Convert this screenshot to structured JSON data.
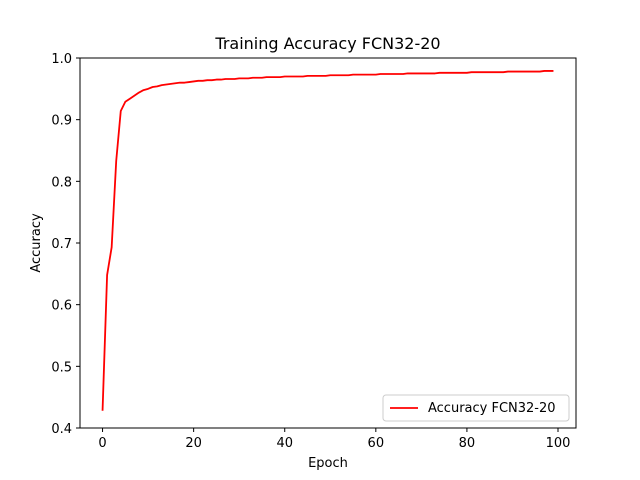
{
  "chart_data": {
    "type": "line",
    "title": "Training Accuracy FCN32-20",
    "xlabel": "Epoch",
    "ylabel": "Accuracy",
    "xlim": [
      -4.95,
      103.95
    ],
    "ylim": [
      0.4,
      1.0
    ],
    "xticks": [
      0,
      20,
      40,
      60,
      80,
      100
    ],
    "yticks": [
      0.4,
      0.5,
      0.6,
      0.7,
      0.8,
      0.9,
      1.0
    ],
    "grid": false,
    "legend_position": "bottom-right",
    "series": [
      {
        "name": "Accuracy FCN32-20",
        "color": "#ff0000",
        "x": [
          0,
          1,
          2,
          3,
          4,
          5,
          6,
          7,
          8,
          9,
          10,
          11,
          12,
          13,
          14,
          15,
          16,
          17,
          18,
          19,
          20,
          21,
          22,
          23,
          24,
          25,
          26,
          27,
          28,
          29,
          30,
          31,
          32,
          33,
          34,
          35,
          36,
          37,
          38,
          39,
          40,
          41,
          42,
          43,
          44,
          45,
          46,
          47,
          48,
          49,
          50,
          51,
          52,
          53,
          54,
          55,
          56,
          57,
          58,
          59,
          60,
          61,
          62,
          63,
          64,
          65,
          66,
          67,
          68,
          69,
          70,
          71,
          72,
          73,
          74,
          75,
          76,
          77,
          78,
          79,
          80,
          81,
          82,
          83,
          84,
          85,
          86,
          87,
          88,
          89,
          90,
          91,
          92,
          93,
          94,
          95,
          96,
          97,
          98,
          99
        ],
        "values": [
          0.428,
          0.648,
          0.693,
          0.833,
          0.914,
          0.929,
          0.934,
          0.939,
          0.944,
          0.948,
          0.95,
          0.953,
          0.954,
          0.956,
          0.957,
          0.958,
          0.959,
          0.96,
          0.96,
          0.961,
          0.962,
          0.963,
          0.963,
          0.964,
          0.964,
          0.965,
          0.965,
          0.966,
          0.966,
          0.966,
          0.967,
          0.967,
          0.967,
          0.968,
          0.968,
          0.968,
          0.969,
          0.969,
          0.969,
          0.969,
          0.97,
          0.97,
          0.97,
          0.97,
          0.97,
          0.971,
          0.971,
          0.971,
          0.971,
          0.971,
          0.972,
          0.972,
          0.972,
          0.972,
          0.972,
          0.973,
          0.973,
          0.973,
          0.973,
          0.973,
          0.973,
          0.974,
          0.974,
          0.974,
          0.974,
          0.974,
          0.974,
          0.975,
          0.975,
          0.975,
          0.975,
          0.975,
          0.975,
          0.975,
          0.976,
          0.976,
          0.976,
          0.976,
          0.976,
          0.976,
          0.976,
          0.977,
          0.977,
          0.977,
          0.977,
          0.977,
          0.977,
          0.977,
          0.977,
          0.978,
          0.978,
          0.978,
          0.978,
          0.978,
          0.978,
          0.978,
          0.978,
          0.979,
          0.979,
          0.979
        ]
      }
    ]
  }
}
